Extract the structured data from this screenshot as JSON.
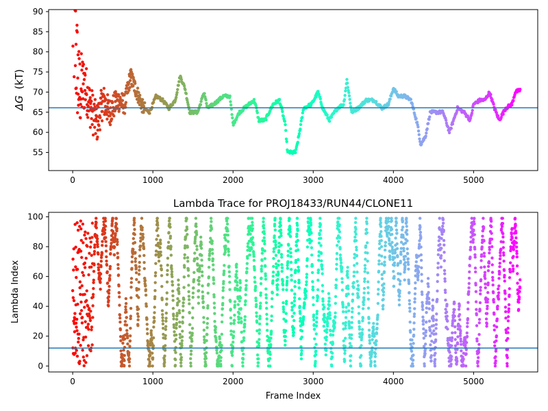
{
  "chart_data": [
    {
      "type": "scatter",
      "title": "",
      "xlabel": "",
      "ylabel": "ΔG (kT)",
      "ylabel_symbol": "ΔG",
      "ylabel_unit": "(kT)",
      "xlim": [
        -300,
        5800
      ],
      "ylim": [
        50.5,
        90.5
      ],
      "xticks": [
        0,
        1000,
        2000,
        3000,
        4000,
        5000
      ],
      "yticks": [
        55,
        60,
        65,
        70,
        75,
        80,
        85,
        90
      ],
      "hline": 66.1,
      "colormap": "rainbow",
      "grid": false,
      "keypoints": [
        [
          0,
          90
        ],
        [
          80,
          70
        ],
        [
          150,
          72
        ],
        [
          230,
          66
        ],
        [
          300,
          62
        ],
        [
          380,
          68
        ],
        [
          460,
          65
        ],
        [
          560,
          68
        ],
        [
          650,
          67
        ],
        [
          720,
          74
        ],
        [
          800,
          70
        ],
        [
          880,
          66
        ],
        [
          960,
          65
        ],
        [
          1040,
          69
        ],
        [
          1120,
          68
        ],
        [
          1200,
          66
        ],
        [
          1280,
          68
        ],
        [
          1340,
          74
        ],
        [
          1400,
          71
        ],
        [
          1460,
          65
        ],
        [
          1560,
          65
        ],
        [
          1640,
          70
        ],
        [
          1680,
          66
        ],
        [
          1760,
          67
        ],
        [
          1880,
          69
        ],
        [
          1960,
          69
        ],
        [
          2000,
          62
        ],
        [
          2080,
          65
        ],
        [
          2200,
          67
        ],
        [
          2260,
          68
        ],
        [
          2280,
          67
        ],
        [
          2320,
          63
        ],
        [
          2400,
          63
        ],
        [
          2500,
          67
        ],
        [
          2580,
          68
        ],
        [
          2650,
          62
        ],
        [
          2680,
          55
        ],
        [
          2780,
          55
        ],
        [
          2820,
          59
        ],
        [
          2880,
          66
        ],
        [
          2980,
          67
        ],
        [
          3060,
          70
        ],
        [
          3120,
          66
        ],
        [
          3200,
          63
        ],
        [
          3300,
          66
        ],
        [
          3380,
          67
        ],
        [
          3420,
          73
        ],
        [
          3480,
          65
        ],
        [
          3560,
          66
        ],
        [
          3660,
          68
        ],
        [
          3760,
          68
        ],
        [
          3860,
          66
        ],
        [
          3940,
          67
        ],
        [
          4000,
          71
        ],
        [
          4060,
          69
        ],
        [
          4140,
          69
        ],
        [
          4220,
          68
        ],
        [
          4300,
          62
        ],
        [
          4340,
          57
        ],
        [
          4400,
          59
        ],
        [
          4460,
          65
        ],
        [
          4620,
          65
        ],
        [
          4700,
          60
        ],
        [
          4800,
          66
        ],
        [
          4880,
          65
        ],
        [
          4960,
          63
        ],
        [
          5000,
          67
        ],
        [
          5080,
          68
        ],
        [
          5140,
          68
        ],
        [
          5200,
          70
        ],
        [
          5260,
          66
        ],
        [
          5320,
          63
        ],
        [
          5400,
          66
        ],
        [
          5480,
          67
        ],
        [
          5520,
          70
        ],
        [
          5580,
          70.5
        ]
      ]
    },
    {
      "type": "scatter",
      "title": "Lambda Trace for PROJ18433/RUN44/CLONE11",
      "xlabel": "Frame Index",
      "ylabel": "Lambda Index",
      "xlim": [
        -300,
        5800
      ],
      "ylim": [
        -4,
        103
      ],
      "xticks": [
        0,
        1000,
        2000,
        3000,
        4000,
        5000
      ],
      "yticks": [
        0,
        20,
        40,
        60,
        80,
        100
      ],
      "hline": 12,
      "colormap": "rainbow",
      "grid": false,
      "x_range": [
        0,
        5580
      ],
      "y_range": [
        0,
        99
      ]
    }
  ]
}
